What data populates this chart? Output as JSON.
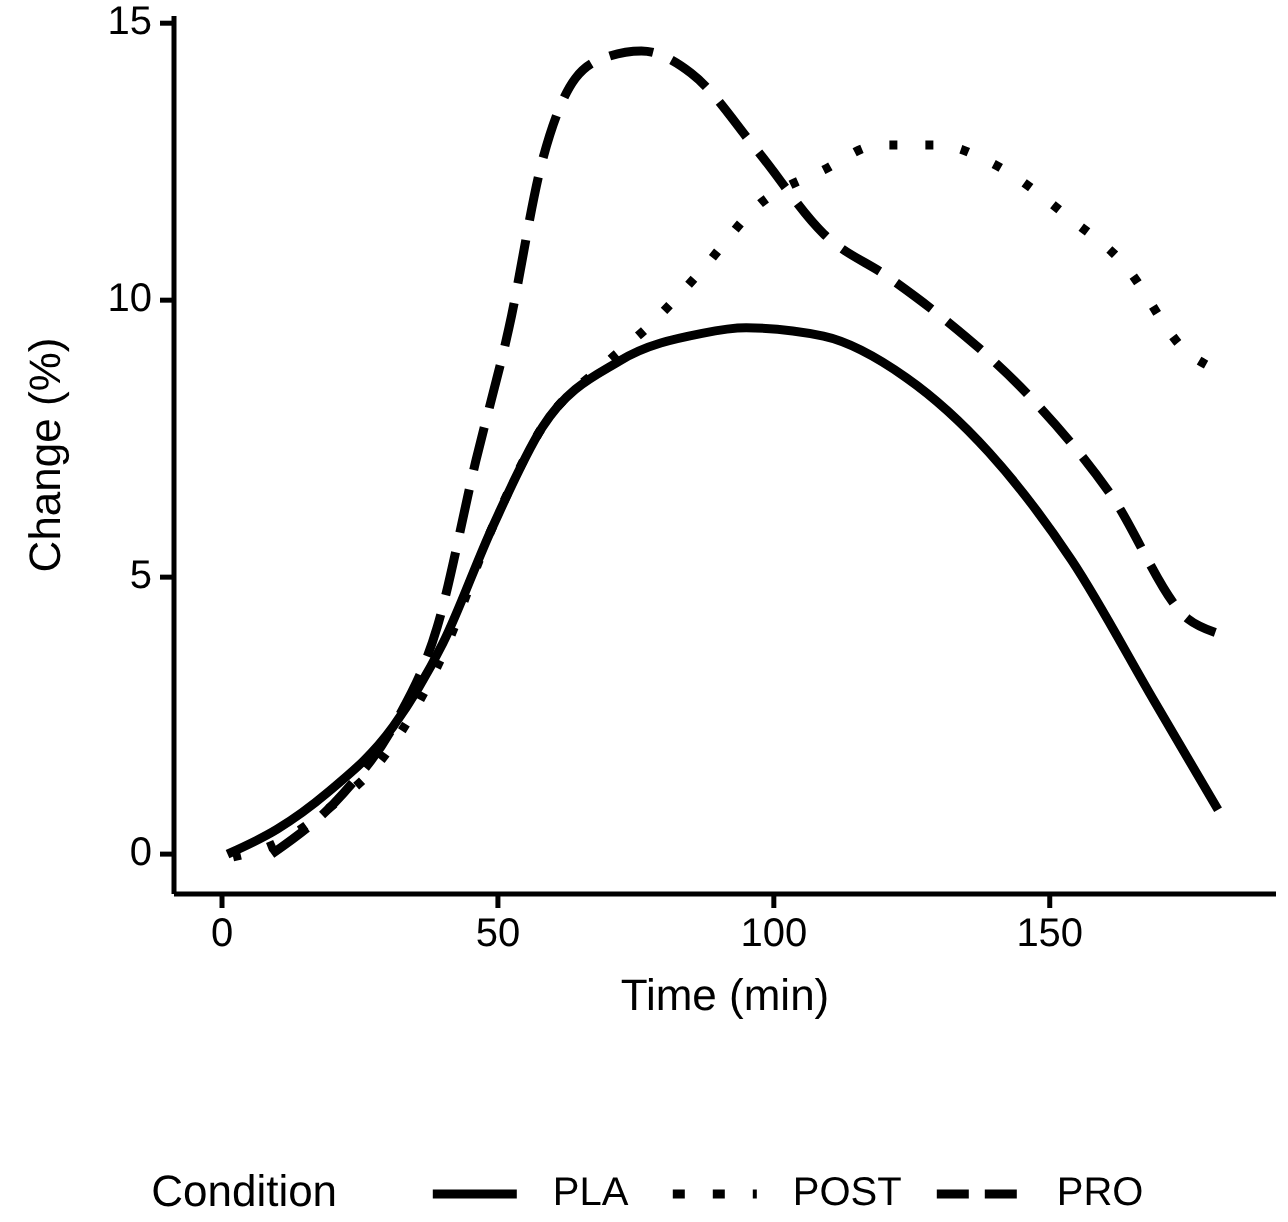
{
  "chart_data": {
    "type": "line",
    "xlabel": "Time (min)",
    "ylabel": "Change (%)",
    "legend_title": "Condition",
    "legend": "bottom",
    "grid": false,
    "marker": "none",
    "xlim": [
      -8.7,
      191
    ],
    "xticks": [
      0,
      50,
      100,
      150
    ],
    "ylim": [
      -0.72,
      15.13
    ],
    "yticks": [
      0,
      5,
      10,
      15
    ],
    "series": [
      {
        "name": "PLA",
        "color": "#000000",
        "line_style": "solid",
        "x": [
          1,
          10,
          19,
          31,
          40,
          49,
          58,
          72,
          87,
          95,
          109,
          124,
          139,
          154,
          169,
          180.5
        ],
        "values": [
          0,
          0.45,
          1.1,
          2.3,
          3.8,
          5.9,
          7.7,
          8.9,
          9.4,
          9.5,
          9.35,
          8.6,
          7.25,
          5.3,
          2.75,
          0.8
        ]
      },
      {
        "name": "POST",
        "color": "#000000",
        "line_style": "dotted",
        "x": [
          2,
          10,
          19,
          30,
          40,
          49,
          58,
          70,
          77,
          87,
          97,
          109,
          119,
          130,
          139,
          154,
          163,
          175,
          179
        ],
        "values": [
          -0.05,
          0.2,
          0.8,
          1.85,
          3.6,
          5.9,
          7.7,
          8.9,
          9.5,
          10.55,
          11.7,
          12.35,
          12.8,
          12.8,
          12.5,
          11.45,
          10.7,
          9.05,
          8.8
        ]
      },
      {
        "name": "PRO",
        "color": "#000000",
        "line_style": "dashed",
        "x": [
          9,
          22,
          31,
          39,
          46,
          52,
          58,
          64,
          70,
          76,
          85,
          97,
          109,
          121,
          131,
          146,
          161,
          175,
          180
        ],
        "values": [
          0,
          1.1,
          2.3,
          4.1,
          7.1,
          9.5,
          12.5,
          14,
          14.4,
          14.5,
          14.1,
          12.7,
          11.2,
          10.4,
          9.65,
          8.3,
          6.5,
          4.25,
          4.0
        ]
      }
    ]
  }
}
